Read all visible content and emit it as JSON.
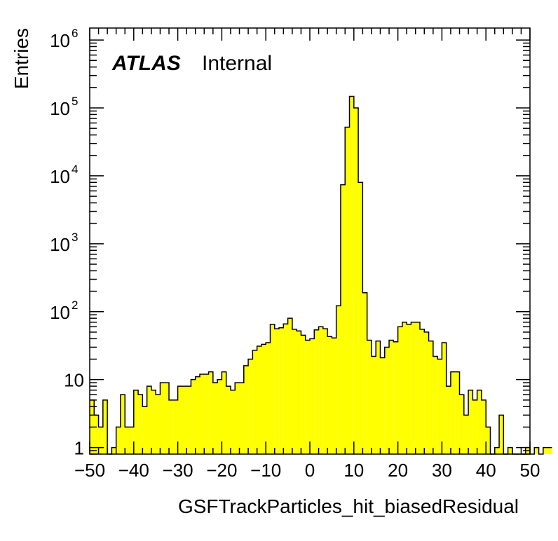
{
  "chart_data": {
    "type": "bar",
    "xlabel": "GSFTrackParticles_hit_biasedResidual",
    "ylabel": "Entries",
    "label_bold": "ATLAS",
    "label_status": "Internal",
    "xlim": [
      -50,
      50
    ],
    "ylim": [
      0.8,
      1500000
    ],
    "log_y": true,
    "grid": false,
    "bin_width": 1,
    "x_ticks": [
      -50,
      -40,
      -30,
      -20,
      -10,
      0,
      10,
      20,
      30,
      40,
      50
    ],
    "y_ticks": [
      {
        "value": 1,
        "base": "1",
        "exp": ""
      },
      {
        "value": 10,
        "base": "10",
        "exp": ""
      },
      {
        "value": 100,
        "base": "10",
        "exp": "2"
      },
      {
        "value": 1000,
        "base": "10",
        "exp": "3"
      },
      {
        "value": 10000,
        "base": "10",
        "exp": "4"
      },
      {
        "value": 100000,
        "base": "10",
        "exp": "5"
      },
      {
        "value": 1000000,
        "base": "10",
        "exp": "6"
      }
    ],
    "fill_color": "#ffff00",
    "line_color": "#000000",
    "bin_edges_start": -50,
    "values": [
      5,
      3,
      2,
      5,
      0,
      1,
      2,
      6,
      2,
      2,
      7,
      6,
      4,
      8,
      7,
      6,
      9,
      9,
      5,
      5,
      8,
      8,
      8,
      10,
      11,
      12,
      12,
      13,
      9,
      10,
      13,
      8,
      7,
      9,
      9,
      16,
      20,
      27,
      31,
      33,
      35,
      65,
      56,
      58,
      66,
      80,
      55,
      52,
      45,
      38,
      40,
      54,
      60,
      56,
      43,
      41,
      122,
      7400,
      52000,
      148000,
      100000,
      8000,
      190,
      38,
      22,
      37,
      21,
      30,
      38,
      36,
      60,
      70,
      65,
      70,
      70,
      55,
      50,
      37,
      22,
      20,
      35,
      8,
      13,
      13,
      6,
      3,
      7,
      5,
      7,
      5,
      2,
      0,
      1,
      3,
      0,
      1,
      0,
      0,
      0,
      1,
      0,
      1,
      0,
      1,
      1
    ]
  }
}
